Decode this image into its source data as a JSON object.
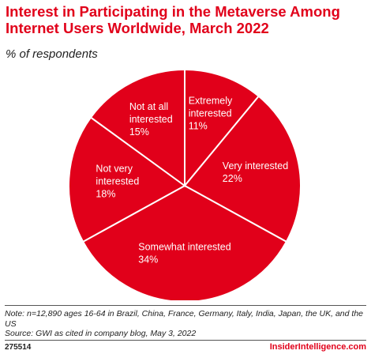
{
  "header": {
    "title": "Interest in Participating in the Metaverse Among Internet Users Worldwide, March 2022",
    "subtitle": "% of respondents"
  },
  "chart_data": {
    "type": "pie",
    "slices": [
      {
        "label_lines": [
          "Extremely",
          "interested"
        ],
        "value": 11,
        "value_text": "11%"
      },
      {
        "label_lines": [
          "Very interested"
        ],
        "value": 22,
        "value_text": "22%"
      },
      {
        "label_lines": [
          "Somewhat interested"
        ],
        "value": 34,
        "value_text": "34%"
      },
      {
        "label_lines": [
          "Not very",
          "interested"
        ],
        "value": 18,
        "value_text": "18%"
      },
      {
        "label_lines": [
          "Not at all",
          "interested"
        ],
        "value": 15,
        "value_text": "15%"
      }
    ],
    "colors": {
      "slice": "#e1001a",
      "border": "#ffffff",
      "label": "#ffffff"
    }
  },
  "footer": {
    "note": "Note: n=12,890 ages 16-64 in Brazil, China, France, Germany, Italy, India, Japan, the UK, and the US",
    "source": "Source: GWI as cited in company blog, May 3, 2022",
    "id": "275514",
    "brand": "InsiderIntelligence.com"
  }
}
